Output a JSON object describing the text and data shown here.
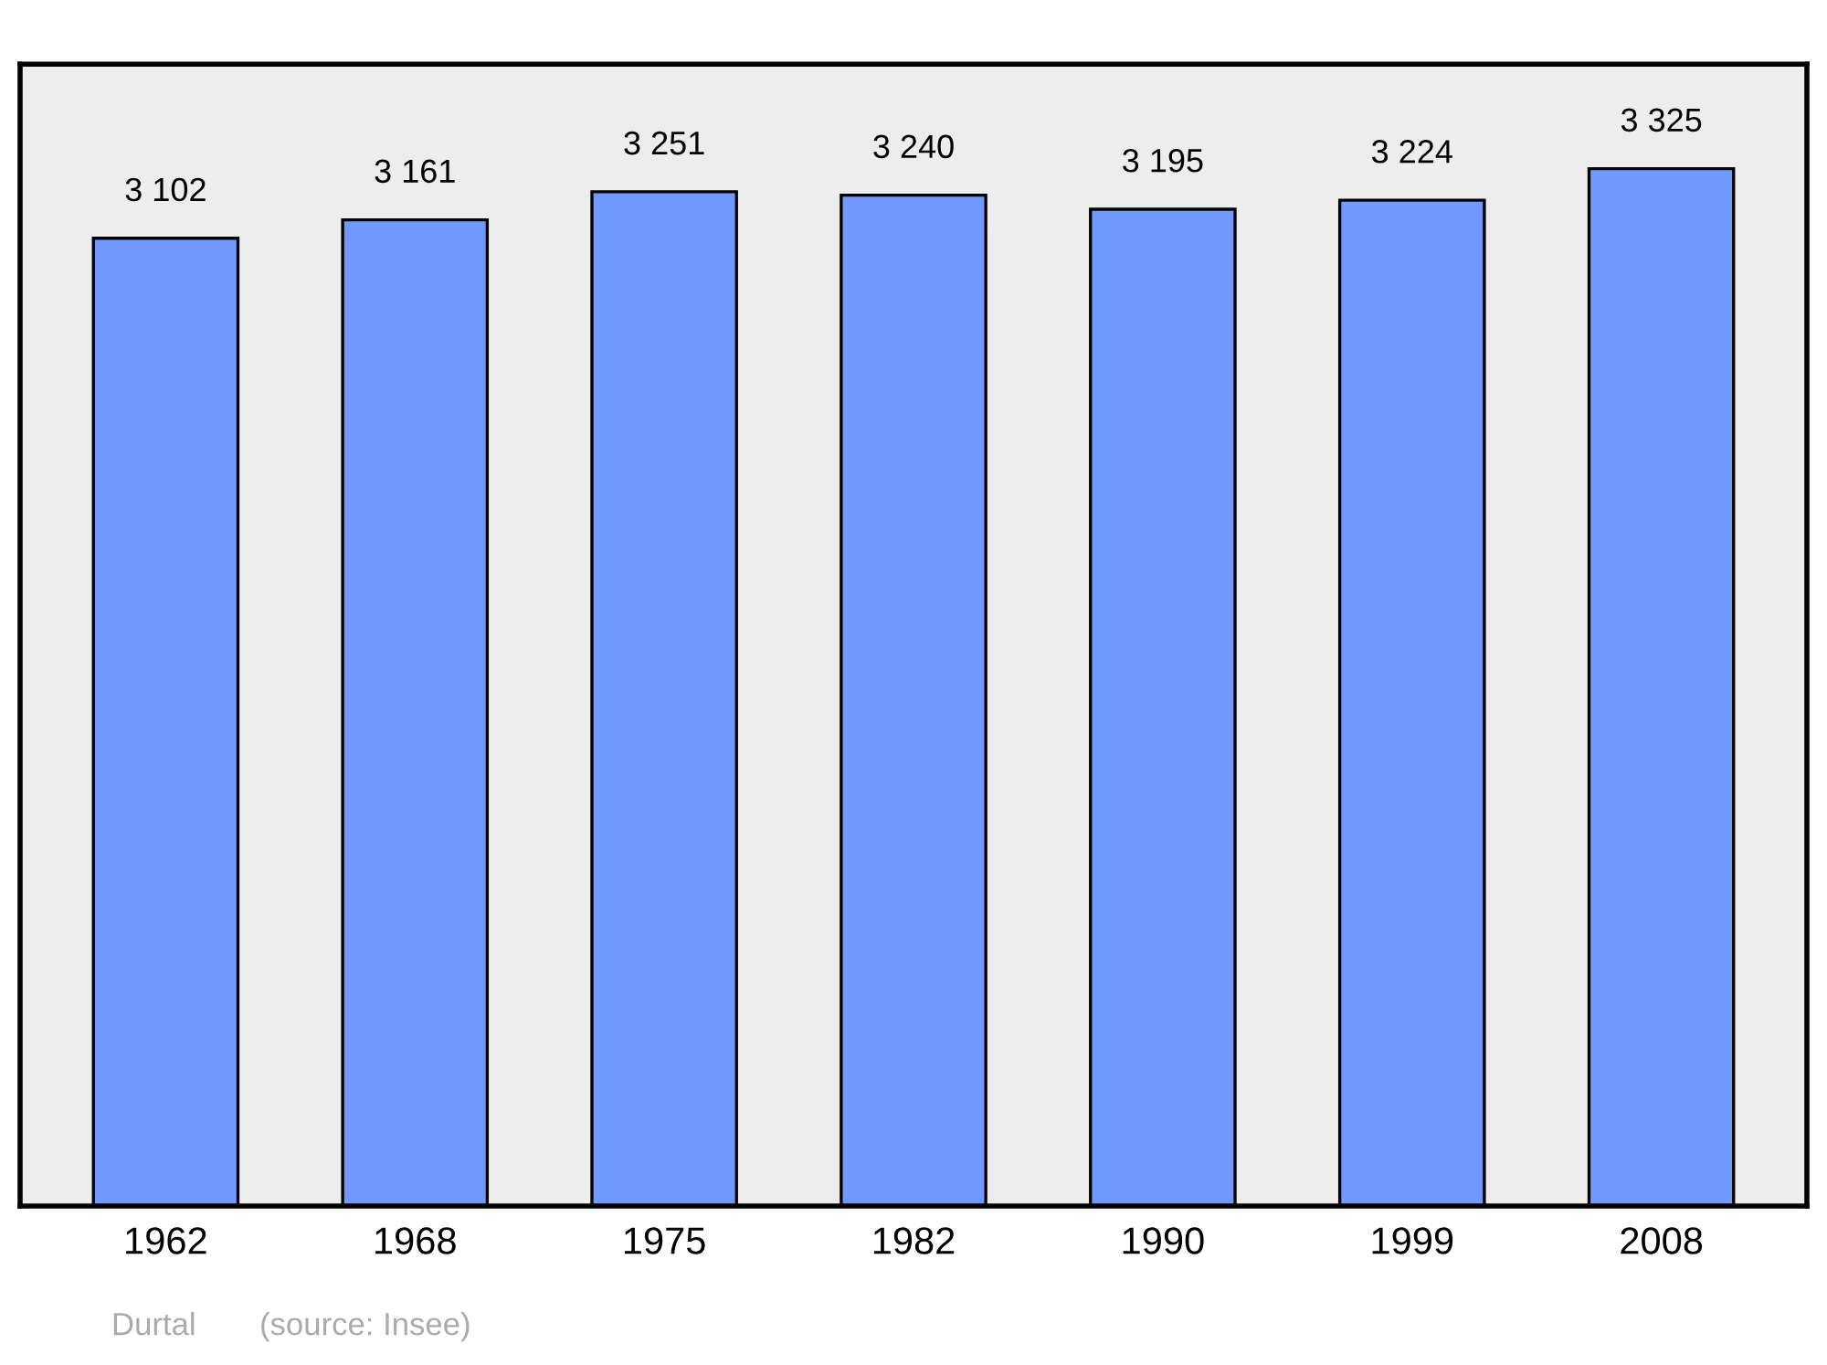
{
  "chart_data": {
    "type": "bar",
    "categories": [
      "1962",
      "1968",
      "1975",
      "1982",
      "1990",
      "1999",
      "2008"
    ],
    "values": [
      3102,
      3161,
      3251,
      3240,
      3195,
      3224,
      3325
    ],
    "value_labels": [
      "3 102",
      "3 161",
      "3 251",
      "3 240",
      "3 195",
      "3 224",
      "3 325"
    ],
    "color": "#7299ff",
    "ylim": [
      0,
      3660
    ],
    "grid": false,
    "legend": false,
    "tick_labels": "x",
    "annotations": [
      "Durtal",
      "(source: Insee)"
    ]
  }
}
